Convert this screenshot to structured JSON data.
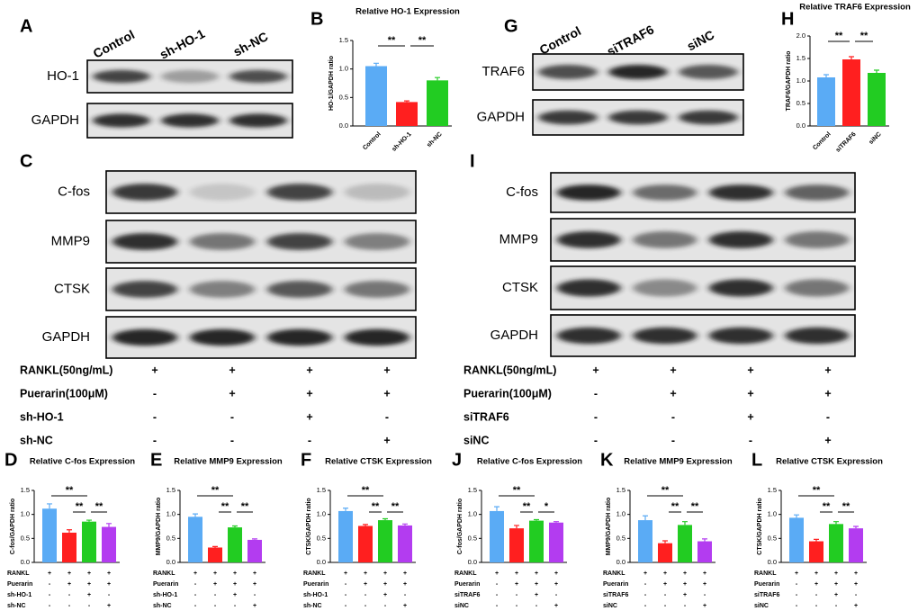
{
  "blots": [
    {
      "panel": "A",
      "lanes": [
        "Control",
        "sh-HO-1",
        "sh-NC"
      ],
      "rows": [
        "HO-1",
        "GAPDH"
      ]
    },
    {
      "panel": "G",
      "lanes": [
        "Control",
        "siTRAF6",
        "siNC"
      ],
      "rows": [
        "TRAF6",
        "GAPDH"
      ]
    },
    {
      "panel": "C",
      "rows": [
        "C-fos",
        "MMP9",
        "CTSK",
        "GAPDH"
      ],
      "treatments": [
        {
          "name": "RANKL(50ng/mL)",
          "marks": [
            "+",
            "+",
            "+",
            "+"
          ]
        },
        {
          "name": "Puerarin(100μM)",
          "marks": [
            "-",
            "+",
            "+",
            "+"
          ]
        },
        {
          "name": "sh-HO-1",
          "marks": [
            "-",
            "-",
            "+",
            "-"
          ]
        },
        {
          "name": "sh-NC",
          "marks": [
            "-",
            "-",
            "-",
            "+"
          ]
        }
      ]
    },
    {
      "panel": "I",
      "rows": [
        "C-fos",
        "MMP9",
        "CTSK",
        "GAPDH"
      ],
      "treatments": [
        {
          "name": "RANKL(50ng/mL)",
          "marks": [
            "+",
            "+",
            "+",
            "+"
          ]
        },
        {
          "name": "Puerarin(100μM)",
          "marks": [
            "-",
            "+",
            "+",
            "+"
          ]
        },
        {
          "name": "siTRAF6",
          "marks": [
            "-",
            "-",
            "+",
            "-"
          ]
        },
        {
          "name": "siNC",
          "marks": [
            "-",
            "-",
            "-",
            "+"
          ]
        }
      ]
    }
  ],
  "chart_data": [
    {
      "type": "bar",
      "panel": "B",
      "title": "Relative HO-1 Expression",
      "ylabel": "HO-1/GAPDH ratio",
      "categories": [
        "Control",
        "sh-HO-1",
        "sh-NC"
      ],
      "values": [
        1.05,
        0.42,
        0.8
      ],
      "errors": [
        0.05,
        0.02,
        0.05
      ],
      "colors": [
        "#5aabf5",
        "#ff1f1f",
        "#22cc22"
      ],
      "ylim": [
        0,
        1.5
      ],
      "yticks": [
        {
          "value": 0,
          "label": "0.0"
        },
        0.5,
        {
          "value": 1,
          "label": "1.0"
        },
        1.5
      ],
      "annotations": [
        "**",
        "**"
      ]
    },
    {
      "type": "bar",
      "panel": "H",
      "title": "Relative TRAF6 Expression",
      "ylabel": "TRAF6/GAPDH ratio",
      "categories": [
        "Control",
        "siTRAF6",
        "siNC"
      ],
      "values": [
        1.08,
        1.48,
        1.18
      ],
      "errors": [
        0.06,
        0.06,
        0.06
      ],
      "colors": [
        "#5aabf5",
        "#ff1f1f",
        "#22cc22"
      ],
      "ylim": [
        0,
        2
      ],
      "yticks": [
        {
          "value": 0,
          "label": "0.0"
        },
        0.5,
        {
          "value": 1,
          "label": "1.0"
        },
        1.5,
        {
          "value": 2,
          "label": "2.0"
        }
      ],
      "annotations": [
        "**",
        "**"
      ]
    },
    {
      "type": "bar",
      "panel": "D",
      "title": "Relative C-fos Expression",
      "ylabel": "C-fos/GAPDH ratio",
      "values": [
        1.12,
        0.62,
        0.85,
        0.74
      ],
      "errors": [
        0.1,
        0.06,
        0.03,
        0.07
      ],
      "colors": [
        "#5aabf5",
        "#ff1f1f",
        "#22cc22",
        "#b33cf0"
      ],
      "ylim": [
        0,
        1.5
      ],
      "yticks": [
        {
          "value": 0,
          "label": "0.0"
        },
        0.5,
        {
          "value": 1,
          "label": "1.0"
        },
        1.5
      ],
      "annotations": [
        "**",
        "**",
        "**"
      ],
      "conditions": [
        {
          "name": "RANKL",
          "marks": [
            "+",
            "+",
            "+",
            "+"
          ]
        },
        {
          "name": "Puerarin",
          "marks": [
            "-",
            "+",
            "+",
            "+"
          ]
        },
        {
          "name": "sh-HO-1",
          "marks": [
            "-",
            "-",
            "+",
            "-"
          ]
        },
        {
          "name": "sh-NC",
          "marks": [
            "-",
            "-",
            "-",
            "+"
          ]
        }
      ]
    },
    {
      "type": "bar",
      "panel": "E",
      "title": "Relative MMP9 Expression",
      "ylabel": "MMP9/GAPDH ratio",
      "values": [
        0.95,
        0.31,
        0.73,
        0.47
      ],
      "errors": [
        0.06,
        0.02,
        0.03,
        0.02
      ],
      "colors": [
        "#5aabf5",
        "#ff1f1f",
        "#22cc22",
        "#b33cf0"
      ],
      "ylim": [
        0,
        1.5
      ],
      "yticks": [
        {
          "value": 0,
          "label": "0.0"
        },
        0.5,
        {
          "value": 1,
          "label": "1.0"
        },
        1.5
      ],
      "annotations": [
        "**",
        "**",
        "**"
      ],
      "conditions": [
        {
          "name": "RANKL",
          "marks": [
            "+",
            "+",
            "+",
            "+"
          ]
        },
        {
          "name": "Puerarin",
          "marks": [
            "-",
            "+",
            "+",
            "+"
          ]
        },
        {
          "name": "sh-HO-1",
          "marks": [
            "-",
            "-",
            "+",
            "-"
          ]
        },
        {
          "name": "sh-NC",
          "marks": [
            "-",
            "-",
            "-",
            "+"
          ]
        }
      ]
    },
    {
      "type": "bar",
      "panel": "F",
      "title": "Relative CTSK Expression",
      "ylabel": "CTSK/GAPDH ratio",
      "values": [
        1.07,
        0.76,
        0.88,
        0.77
      ],
      "errors": [
        0.06,
        0.03,
        0.03,
        0.03
      ],
      "colors": [
        "#5aabf5",
        "#ff1f1f",
        "#22cc22",
        "#b33cf0"
      ],
      "ylim": [
        0,
        1.5
      ],
      "yticks": [
        {
          "value": 0,
          "label": "0.0"
        },
        0.5,
        {
          "value": 1,
          "label": "1.0"
        },
        1.5
      ],
      "annotations": [
        "**",
        "**",
        "**"
      ],
      "conditions": [
        {
          "name": "RANKL",
          "marks": [
            "+",
            "+",
            "+",
            "+"
          ]
        },
        {
          "name": "Puerarin",
          "marks": [
            "-",
            "+",
            "+",
            "+"
          ]
        },
        {
          "name": "sh-HO-1",
          "marks": [
            "-",
            "-",
            "+",
            "-"
          ]
        },
        {
          "name": "sh-NC",
          "marks": [
            "-",
            "-",
            "-",
            "+"
          ]
        }
      ]
    },
    {
      "type": "bar",
      "panel": "J",
      "title": "Relative C-fos Expression",
      "ylabel": "C-fos/GAPDH ratio",
      "values": [
        1.07,
        0.71,
        0.87,
        0.83
      ],
      "errors": [
        0.09,
        0.06,
        0.02,
        0.02
      ],
      "colors": [
        "#5aabf5",
        "#ff1f1f",
        "#22cc22",
        "#b33cf0"
      ],
      "ylim": [
        0,
        1.5
      ],
      "yticks": [
        {
          "value": 0,
          "label": "0.0"
        },
        0.5,
        {
          "value": 1,
          "label": "1.0"
        },
        1.5
      ],
      "annotations": [
        "**",
        "**",
        "*"
      ],
      "conditions": [
        {
          "name": "RANKL",
          "marks": [
            "+",
            "+",
            "+",
            "+"
          ]
        },
        {
          "name": "Puerarin",
          "marks": [
            "-",
            "+",
            "+",
            "+"
          ]
        },
        {
          "name": "siTRAF6",
          "marks": [
            "-",
            "-",
            "+",
            "-"
          ]
        },
        {
          "name": "siNC",
          "marks": [
            "-",
            "-",
            "-",
            "+"
          ]
        }
      ]
    },
    {
      "type": "bar",
      "panel": "K",
      "title": "Relative MMP9 Expression",
      "ylabel": "MMP9/GAPDH ratio",
      "values": [
        0.88,
        0.4,
        0.78,
        0.44
      ],
      "errors": [
        0.09,
        0.05,
        0.07,
        0.05
      ],
      "colors": [
        "#5aabf5",
        "#ff1f1f",
        "#22cc22",
        "#b33cf0"
      ],
      "ylim": [
        0,
        1.5
      ],
      "yticks": [
        {
          "value": 0,
          "label": "0.0"
        },
        0.5,
        {
          "value": 1,
          "label": "1.0"
        },
        1.5
      ],
      "annotations": [
        "**",
        "**",
        "**"
      ],
      "conditions": [
        {
          "name": "RANKL",
          "marks": [
            "+",
            "+",
            "+",
            "+"
          ]
        },
        {
          "name": "Puerarin",
          "marks": [
            "-",
            "+",
            "+",
            "+"
          ]
        },
        {
          "name": "siTRAF6",
          "marks": [
            "-",
            "-",
            "+",
            "-"
          ]
        },
        {
          "name": "siNC",
          "marks": [
            "-",
            "-",
            "-",
            "+"
          ]
        }
      ]
    },
    {
      "type": "bar",
      "panel": "L",
      "title": "Relative CTSK Expression",
      "ylabel": "CTSK/GAPDH ratio",
      "values": [
        0.93,
        0.44,
        0.8,
        0.71
      ],
      "errors": [
        0.06,
        0.04,
        0.05,
        0.04
      ],
      "colors": [
        "#5aabf5",
        "#ff1f1f",
        "#22cc22",
        "#b33cf0"
      ],
      "ylim": [
        0,
        1.5
      ],
      "yticks": [
        {
          "value": 0,
          "label": "0.0"
        },
        0.5,
        {
          "value": 1,
          "label": "1.0"
        },
        1.5
      ],
      "annotations": [
        "**",
        "**",
        "**"
      ],
      "conditions": [
        {
          "name": "RANKL",
          "marks": [
            "+",
            "+",
            "+",
            "+"
          ]
        },
        {
          "name": "Puerarin",
          "marks": [
            "-",
            "+",
            "+",
            "+"
          ]
        },
        {
          "name": "siTRAF6",
          "marks": [
            "-",
            "-",
            "+",
            "-"
          ]
        },
        {
          "name": "siNC",
          "marks": [
            "-",
            "-",
            "-",
            "+"
          ]
        }
      ]
    }
  ]
}
